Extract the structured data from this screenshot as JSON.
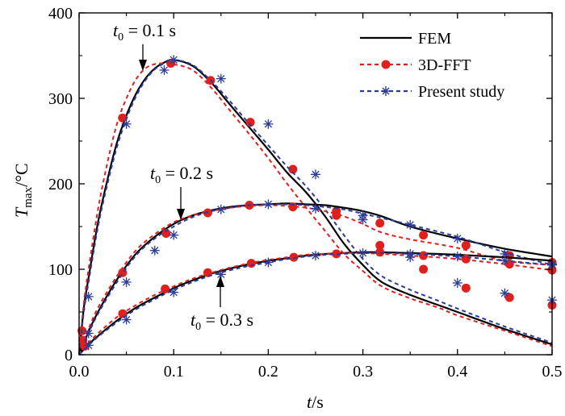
{
  "chart_data": {
    "type": "line",
    "xlabel": {
      "symbol": "t",
      "unit": "/s"
    },
    "ylabel": {
      "symbol": "T",
      "subscript": "max",
      "unit": "/°C"
    },
    "xlim": [
      0,
      0.5
    ],
    "ylim": [
      0,
      400
    ],
    "xticks": [
      "0.0",
      "0.1",
      "0.2",
      "0.3",
      "0.4",
      "0.5"
    ],
    "yticks": [
      "0",
      "100",
      "200",
      "300",
      "400"
    ],
    "grid": false,
    "legend_position": "top-right",
    "colors": {
      "FEM": "#000000",
      "3D-FFT": "#e0201c",
      "Present study": "#2a3b9a"
    },
    "legend": [
      "FEM",
      "3D-FFT",
      "Present study"
    ],
    "annotations": [
      {
        "symbol": "t",
        "subscript": "0",
        "text": " = 0.1 s"
      },
      {
        "symbol": "t",
        "subscript": "0",
        "text": " = 0.2 s"
      },
      {
        "symbol": "t",
        "subscript": "0",
        "text": " = 0.3 s"
      }
    ],
    "series": [
      {
        "name": "FEM",
        "case": "t0 = 0.1 s",
        "x": [
          0,
          0.005,
          0.01,
          0.02,
          0.03,
          0.04,
          0.05,
          0.06,
          0.07,
          0.08,
          0.09,
          0.1,
          0.12,
          0.14,
          0.16,
          0.18,
          0.2,
          0.22,
          0.24,
          0.26,
          0.28,
          0.3,
          0.32,
          0.35,
          0.38,
          0.4,
          0.45,
          0.5
        ],
        "y": [
          0,
          55,
          90,
          155,
          205,
          248,
          280,
          305,
          323,
          335,
          342,
          345,
          338,
          318,
          292,
          266,
          240,
          213,
          190,
          162,
          130,
          105,
          85,
          70,
          58,
          50,
          30,
          12
        ]
      },
      {
        "name": "3D-FFT",
        "case": "t0 = 0.1 s",
        "x": [
          0,
          0.005,
          0.01,
          0.02,
          0.03,
          0.04,
          0.05,
          0.06,
          0.07,
          0.08,
          0.09,
          0.1,
          0.12,
          0.14,
          0.16,
          0.18,
          0.2,
          0.22,
          0.24,
          0.26,
          0.28,
          0.3,
          0.32,
          0.35,
          0.38,
          0.4,
          0.45,
          0.5
        ],
        "y": [
          0,
          60,
          100,
          170,
          225,
          270,
          300,
          322,
          335,
          340,
          341,
          340,
          333,
          312,
          285,
          258,
          230,
          200,
          172,
          145,
          118,
          98,
          80,
          66,
          55,
          46,
          28,
          10
        ],
        "markers": [
          [
            0.003,
            28
          ],
          [
            0.046,
            277
          ],
          [
            0.097,
            341
          ],
          [
            0.139,
            321
          ],
          [
            0.181,
            272
          ],
          [
            0.226,
            217
          ],
          [
            0.272,
            168
          ],
          [
            0.318,
            128
          ],
          [
            0.364,
            100
          ],
          [
            0.409,
            78
          ],
          [
            0.455,
            67
          ],
          [
            0.5,
            58
          ]
        ]
      },
      {
        "name": "Present study",
        "case": "t0 = 0.1 s",
        "x": [
          0,
          0.005,
          0.01,
          0.02,
          0.03,
          0.04,
          0.05,
          0.06,
          0.07,
          0.08,
          0.09,
          0.1,
          0.12,
          0.14,
          0.16,
          0.18,
          0.2,
          0.22,
          0.24,
          0.26,
          0.28,
          0.3,
          0.32,
          0.35,
          0.38,
          0.4,
          0.45,
          0.5
        ],
        "y": [
          0,
          50,
          85,
          150,
          200,
          243,
          276,
          302,
          321,
          334,
          341,
          345,
          339,
          320,
          296,
          270,
          245,
          220,
          197,
          170,
          140,
          112,
          92,
          76,
          63,
          54,
          33,
          14
        ],
        "markers": [
          [
            0.01,
            68
          ],
          [
            0.05,
            270
          ],
          [
            0.09,
            333
          ],
          [
            0.1,
            345
          ],
          [
            0.15,
            323
          ],
          [
            0.2,
            270
          ],
          [
            0.25,
            211
          ],
          [
            0.3,
            158
          ],
          [
            0.35,
            114
          ],
          [
            0.4,
            84
          ],
          [
            0.45,
            72
          ],
          [
            0.5,
            64
          ]
        ]
      },
      {
        "name": "FEM",
        "case": "t0 = 0.2 s",
        "x": [
          0,
          0.01,
          0.02,
          0.04,
          0.06,
          0.08,
          0.1,
          0.12,
          0.14,
          0.16,
          0.18,
          0.2,
          0.22,
          0.24,
          0.26,
          0.28,
          0.3,
          0.32,
          0.35,
          0.4,
          0.45,
          0.5
        ],
        "y": [
          0,
          27,
          50,
          88,
          118,
          138,
          153,
          163,
          169,
          173,
          175,
          176,
          177,
          176,
          175,
          172,
          168,
          162,
          150,
          136,
          124,
          115
        ]
      },
      {
        "name": "3D-FFT",
        "case": "t0 = 0.2 s",
        "x": [
          0,
          0.01,
          0.02,
          0.04,
          0.06,
          0.08,
          0.1,
          0.12,
          0.14,
          0.16,
          0.18,
          0.2,
          0.22,
          0.24,
          0.26,
          0.28,
          0.3,
          0.32,
          0.35,
          0.4,
          0.45,
          0.5
        ],
        "y": [
          0,
          30,
          55,
          92,
          122,
          141,
          155,
          163,
          168,
          172,
          174,
          175,
          174,
          172,
          168,
          162,
          153,
          143,
          135,
          125,
          110,
          105
        ],
        "markers": [
          [
            0.004,
            17
          ],
          [
            0.046,
            96
          ],
          [
            0.092,
            142
          ],
          [
            0.136,
            166
          ],
          [
            0.18,
            175
          ],
          [
            0.226,
            173
          ],
          [
            0.272,
            163
          ],
          [
            0.318,
            154
          ],
          [
            0.364,
            140
          ],
          [
            0.409,
            128
          ],
          [
            0.455,
            116
          ],
          [
            0.5,
            108
          ]
        ]
      },
      {
        "name": "Present study",
        "case": "t0 = 0.2 s",
        "x": [
          0,
          0.01,
          0.02,
          0.04,
          0.06,
          0.08,
          0.1,
          0.12,
          0.14,
          0.16,
          0.18,
          0.2,
          0.22,
          0.24,
          0.26,
          0.28,
          0.3,
          0.32,
          0.35,
          0.4,
          0.45,
          0.5
        ],
        "y": [
          0,
          25,
          48,
          85,
          116,
          136,
          150,
          161,
          168,
          172,
          175,
          176,
          176,
          175,
          173,
          170,
          165,
          160,
          152,
          138,
          120,
          105
        ],
        "markers": [
          [
            0.01,
            25
          ],
          [
            0.05,
            85
          ],
          [
            0.08,
            122
          ],
          [
            0.1,
            140
          ],
          [
            0.15,
            170
          ],
          [
            0.2,
            176
          ],
          [
            0.25,
            171
          ],
          [
            0.3,
            163
          ],
          [
            0.35,
            152
          ],
          [
            0.4,
            136
          ],
          [
            0.45,
            118
          ],
          [
            0.5,
            106
          ]
        ]
      },
      {
        "name": "FEM",
        "case": "t0 = 0.3 s",
        "x": [
          0,
          0.01,
          0.02,
          0.04,
          0.06,
          0.08,
          0.1,
          0.12,
          0.14,
          0.16,
          0.18,
          0.2,
          0.22,
          0.24,
          0.26,
          0.28,
          0.3,
          0.32,
          0.35,
          0.4,
          0.45,
          0.5
        ],
        "y": [
          0,
          12,
          22,
          40,
          55,
          67,
          78,
          87,
          95,
          101,
          106,
          110,
          113,
          116,
          118,
          119,
          120,
          120,
          119,
          117,
          114,
          110
        ]
      },
      {
        "name": "3D-FFT",
        "case": "t0 = 0.3 s",
        "x": [
          0,
          0.01,
          0.02,
          0.04,
          0.06,
          0.08,
          0.1,
          0.12,
          0.14,
          0.16,
          0.18,
          0.2,
          0.22,
          0.24,
          0.26,
          0.28,
          0.3,
          0.32,
          0.35,
          0.4,
          0.45,
          0.5
        ],
        "y": [
          0,
          14,
          25,
          44,
          58,
          70,
          80,
          89,
          96,
          102,
          107,
          111,
          114,
          117,
          118,
          119,
          119,
          118,
          116,
          112,
          106,
          99
        ],
        "markers": [
          [
            0.006,
            10
          ],
          [
            0.046,
            48
          ],
          [
            0.091,
            77
          ],
          [
            0.136,
            96
          ],
          [
            0.182,
            107
          ],
          [
            0.227,
            114
          ],
          [
            0.272,
            118
          ],
          [
            0.318,
            120
          ],
          [
            0.364,
            116
          ],
          [
            0.409,
            112
          ],
          [
            0.455,
            106
          ],
          [
            0.5,
            99
          ]
        ]
      },
      {
        "name": "Present study",
        "case": "t0 = 0.3 s",
        "x": [
          0,
          0.01,
          0.02,
          0.04,
          0.06,
          0.08,
          0.1,
          0.12,
          0.14,
          0.16,
          0.18,
          0.2,
          0.22,
          0.24,
          0.26,
          0.28,
          0.3,
          0.32,
          0.35,
          0.4,
          0.45,
          0.5
        ],
        "y": [
          0,
          11,
          21,
          38,
          53,
          65,
          76,
          85,
          93,
          99,
          104,
          108,
          112,
          115,
          117,
          118,
          119,
          119,
          118,
          115,
          110,
          105
        ],
        "markers": [
          [
            0.01,
            11
          ],
          [
            0.05,
            41
          ],
          [
            0.1,
            73
          ],
          [
            0.15,
            94
          ],
          [
            0.2,
            108
          ],
          [
            0.25,
            116
          ],
          [
            0.3,
            119
          ],
          [
            0.35,
            118
          ],
          [
            0.4,
            115
          ],
          [
            0.45,
            110
          ],
          [
            0.5,
            105
          ]
        ]
      }
    ]
  }
}
